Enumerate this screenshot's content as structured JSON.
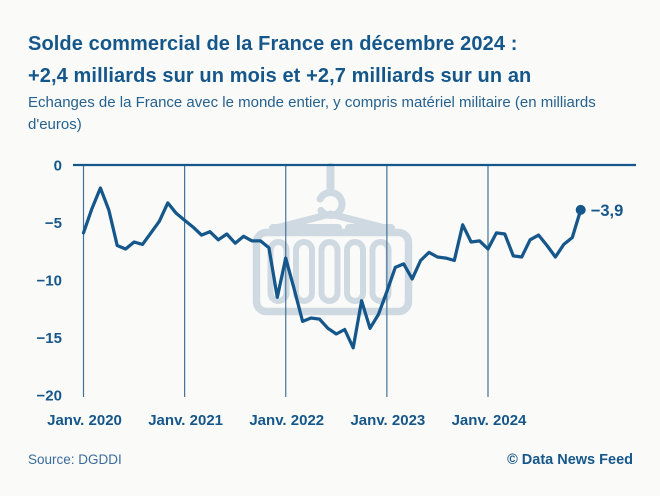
{
  "header": {
    "title_line1": "Solde commercial de la France en décembre 2024 :",
    "title_line2": "+2,4 milliards sur un mois et +2,7 milliards sur un an",
    "subtitle": "Echanges de la France avec le monde entier, y compris matériel militaire (en milliards d'euros)"
  },
  "footer": {
    "source": "Source: DGDDI",
    "credit": "© Data News Feed"
  },
  "colors": {
    "accent": "#15578b",
    "grid": "#447399",
    "watermark": "#ced9e2",
    "background": "#fafaf8"
  },
  "watermark_icon": "shipping-container-icon",
  "chart_data": {
    "type": "line",
    "title": "Solde commercial de la France (milliards d'euros)",
    "unit": "milliards d'euros",
    "ylim": [
      -20,
      0
    ],
    "grid": "vertical-year-lines",
    "legend": "none",
    "y_ticks": [
      0,
      -5,
      -10,
      -15,
      -20
    ],
    "y_tick_labels": [
      "0",
      "−5",
      "−10",
      "−15",
      "−20"
    ],
    "x_tick_labels": [
      "Janv. 2020",
      "Janv. 2021",
      "Janv. 2022",
      "Janv. 2023",
      "Janv. 2024"
    ],
    "x_tick_month_index": [
      0,
      12,
      24,
      36,
      48
    ],
    "x": [
      "2020-01",
      "2020-02",
      "2020-03",
      "2020-04",
      "2020-05",
      "2020-06",
      "2020-07",
      "2020-08",
      "2020-09",
      "2020-10",
      "2020-11",
      "2020-12",
      "2021-01",
      "2021-02",
      "2021-03",
      "2021-04",
      "2021-05",
      "2021-06",
      "2021-07",
      "2021-08",
      "2021-09",
      "2021-10",
      "2021-11",
      "2021-12",
      "2022-01",
      "2022-02",
      "2022-03",
      "2022-04",
      "2022-05",
      "2022-06",
      "2022-07",
      "2022-08",
      "2022-09",
      "2022-10",
      "2022-11",
      "2022-12",
      "2023-01",
      "2023-02",
      "2023-03",
      "2023-04",
      "2023-05",
      "2023-06",
      "2023-07",
      "2023-08",
      "2023-09",
      "2023-10",
      "2023-11",
      "2023-12",
      "2024-01",
      "2024-02",
      "2024-03",
      "2024-04",
      "2024-05",
      "2024-06",
      "2024-07",
      "2024-08",
      "2024-09",
      "2024-10",
      "2024-11",
      "2024-12"
    ],
    "values": [
      -5.9,
      -3.8,
      -2.0,
      -3.9,
      -7.0,
      -7.3,
      -6.7,
      -6.9,
      -5.9,
      -4.9,
      -3.3,
      -4.2,
      -4.8,
      -5.4,
      -6.1,
      -5.8,
      -6.5,
      -6.0,
      -6.8,
      -6.2,
      -6.6,
      -6.6,
      -7.2,
      -11.5,
      -8.1,
      -10.8,
      -13.6,
      -13.3,
      -13.4,
      -14.2,
      -14.7,
      -14.3,
      -15.9,
      -11.8,
      -14.2,
      -13.0,
      -11.0,
      -8.9,
      -8.6,
      -9.9,
      -8.3,
      -7.6,
      -8.0,
      -8.1,
      -8.3,
      -5.2,
      -6.7,
      -6.6,
      -7.3,
      -5.9,
      -6.0,
      -7.9,
      -8.0,
      -6.5,
      -6.1,
      -7.0,
      -8.0,
      -6.9,
      -6.3,
      -3.9
    ],
    "end_label": "−3,9",
    "last_point_value": -3.9
  }
}
